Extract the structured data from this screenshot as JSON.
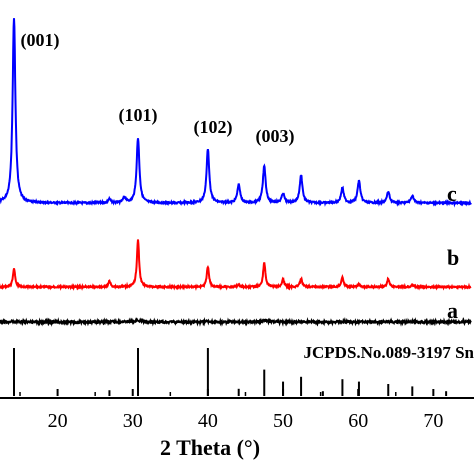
{
  "chart_data": {
    "type": "line",
    "xlabel": "2 Theta (°)",
    "xlim": [
      5,
      74
    ],
    "xticks": [
      20,
      30,
      40,
      50,
      60,
      70
    ],
    "tick_labels": [
      "20",
      "30",
      "40",
      "50",
      "60",
      "70"
    ],
    "reference_label": "JCPDS.No.089-3197 Sn",
    "peak_annotations": [
      {
        "label": "(001)",
        "x": 14.2
      },
      {
        "label": "(101)",
        "x": 30.7
      },
      {
        "label": "(102)",
        "x": 40.0
      },
      {
        "label": "(003)",
        "x": 47.5
      }
    ],
    "series": [
      {
        "name": "c",
        "color": "#0000ff",
        "peaks": [
          [
            14.2,
            100
          ],
          [
            26.9,
            2
          ],
          [
            28.9,
            3
          ],
          [
            30.7,
            35
          ],
          [
            40.0,
            29
          ],
          [
            44.1,
            10
          ],
          [
            47.5,
            20
          ],
          [
            50.0,
            5
          ],
          [
            52.4,
            15
          ],
          [
            57.9,
            8
          ],
          [
            60.1,
            12
          ],
          [
            64.0,
            6
          ],
          [
            67.2,
            4
          ]
        ]
      },
      {
        "name": "b",
        "color": "#ff0000",
        "peaks": [
          [
            14.2,
            22
          ],
          [
            26.9,
            7
          ],
          [
            30.7,
            57
          ],
          [
            40.0,
            25
          ],
          [
            44.1,
            3
          ],
          [
            47.5,
            30
          ],
          [
            50.0,
            9
          ],
          [
            52.4,
            10
          ],
          [
            57.9,
            12
          ],
          [
            60.1,
            3
          ],
          [
            64.0,
            10
          ],
          [
            67.2,
            3
          ]
        ]
      },
      {
        "name": "a",
        "color": "#000000",
        "peaks": [
          [
            14.2,
            4
          ],
          [
            26.9,
            2
          ],
          [
            30.7,
            12
          ],
          [
            40.0,
            6
          ],
          [
            47.5,
            9
          ],
          [
            52.4,
            3
          ],
          [
            57.9,
            3
          ],
          [
            64.0,
            2
          ]
        ]
      }
    ],
    "reference_lines": [
      [
        14.2,
        100
      ],
      [
        26.9,
        12
      ],
      [
        30.7,
        100
      ],
      [
        40.0,
        100
      ],
      [
        44.1,
        15
      ],
      [
        47.5,
        55
      ],
      [
        50.0,
        30
      ],
      [
        52.4,
        40
      ],
      [
        55.3,
        10
      ],
      [
        57.9,
        35
      ],
      [
        60.1,
        30
      ],
      [
        64.0,
        25
      ],
      [
        67.2,
        20
      ],
      [
        71.7,
        10
      ]
    ]
  }
}
